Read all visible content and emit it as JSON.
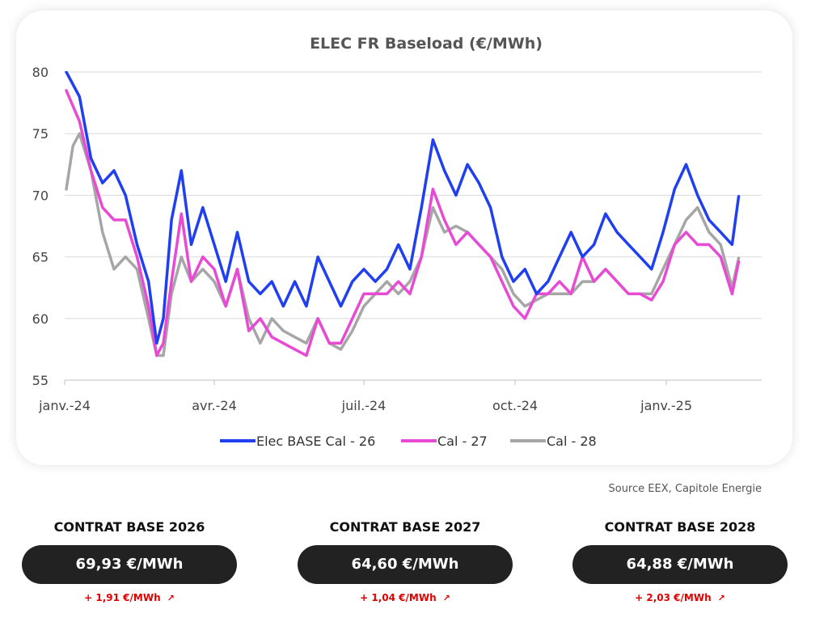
{
  "chart_data": {
    "type": "line",
    "title": "ELEC FR Baseload (€/MWh)",
    "xlabel": "",
    "ylabel": "",
    "ylim": [
      55,
      80
    ],
    "yticks": [
      55,
      60,
      65,
      70,
      75,
      80
    ],
    "xlim": [
      "2024-01-01",
      "2025-02-28"
    ],
    "xticks": [
      {
        "date": "2024-01-01",
        "label": "janv.-24"
      },
      {
        "date": "2024-04-01",
        "label": "avr.-24"
      },
      {
        "date": "2024-07-01",
        "label": "juil.-24"
      },
      {
        "date": "2024-10-01",
        "label": "oct.-24"
      },
      {
        "date": "2025-01-01",
        "label": "janv.-25"
      }
    ],
    "grid": "horizontal",
    "legend": "bottom",
    "series": [
      {
        "name": "Elec BASE Cal - 26",
        "color": "#1f3ff0",
        "points": [
          [
            "2024-01-02",
            80
          ],
          [
            "2024-01-10",
            78
          ],
          [
            "2024-01-17",
            73
          ],
          [
            "2024-01-24",
            71
          ],
          [
            "2024-01-31",
            72
          ],
          [
            "2024-02-07",
            70
          ],
          [
            "2024-02-14",
            66
          ],
          [
            "2024-02-21",
            63
          ],
          [
            "2024-02-26",
            58
          ],
          [
            "2024-03-01",
            60
          ],
          [
            "2024-03-06",
            68
          ],
          [
            "2024-03-12",
            72
          ],
          [
            "2024-03-18",
            66
          ],
          [
            "2024-03-25",
            69
          ],
          [
            "2024-04-01",
            66
          ],
          [
            "2024-04-08",
            63
          ],
          [
            "2024-04-15",
            67
          ],
          [
            "2024-04-22",
            63
          ],
          [
            "2024-04-29",
            62
          ],
          [
            "2024-05-06",
            63
          ],
          [
            "2024-05-13",
            61
          ],
          [
            "2024-05-20",
            63
          ],
          [
            "2024-05-27",
            61
          ],
          [
            "2024-06-03",
            65
          ],
          [
            "2024-06-10",
            63
          ],
          [
            "2024-06-17",
            61
          ],
          [
            "2024-06-24",
            63
          ],
          [
            "2024-07-01",
            64
          ],
          [
            "2024-07-08",
            63
          ],
          [
            "2024-07-15",
            64
          ],
          [
            "2024-07-22",
            66
          ],
          [
            "2024-07-29",
            64
          ],
          [
            "2024-08-05",
            69
          ],
          [
            "2024-08-12",
            74.5
          ],
          [
            "2024-08-19",
            72
          ],
          [
            "2024-08-26",
            70
          ],
          [
            "2024-09-02",
            72.5
          ],
          [
            "2024-09-09",
            71
          ],
          [
            "2024-09-16",
            69
          ],
          [
            "2024-09-23",
            65
          ],
          [
            "2024-09-30",
            63
          ],
          [
            "2024-10-07",
            64
          ],
          [
            "2024-10-14",
            62
          ],
          [
            "2024-10-21",
            63
          ],
          [
            "2024-10-28",
            65
          ],
          [
            "2024-11-04",
            67
          ],
          [
            "2024-11-11",
            65
          ],
          [
            "2024-11-18",
            66
          ],
          [
            "2024-11-25",
            68.5
          ],
          [
            "2024-12-02",
            67
          ],
          [
            "2024-12-09",
            66
          ],
          [
            "2024-12-16",
            65
          ],
          [
            "2024-12-23",
            64
          ],
          [
            "2024-12-30",
            67
          ],
          [
            "2025-01-06",
            70.5
          ],
          [
            "2025-01-13",
            72.5
          ],
          [
            "2025-01-20",
            70
          ],
          [
            "2025-01-27",
            68
          ],
          [
            "2025-02-03",
            67
          ],
          [
            "2025-02-10",
            66
          ],
          [
            "2025-02-14",
            69.9
          ]
        ]
      },
      {
        "name": "Cal - 27",
        "color": "#e84bd3",
        "points": [
          [
            "2024-01-02",
            78.5
          ],
          [
            "2024-01-10",
            76
          ],
          [
            "2024-01-17",
            72
          ],
          [
            "2024-01-24",
            69
          ],
          [
            "2024-01-31",
            68
          ],
          [
            "2024-02-07",
            68
          ],
          [
            "2024-02-14",
            65
          ],
          [
            "2024-02-21",
            61
          ],
          [
            "2024-02-26",
            57
          ],
          [
            "2024-03-01",
            58
          ],
          [
            "2024-03-06",
            63
          ],
          [
            "2024-03-12",
            68.5
          ],
          [
            "2024-03-18",
            63
          ],
          [
            "2024-03-25",
            65
          ],
          [
            "2024-04-01",
            64
          ],
          [
            "2024-04-08",
            61
          ],
          [
            "2024-04-15",
            64
          ],
          [
            "2024-04-22",
            59
          ],
          [
            "2024-04-29",
            60
          ],
          [
            "2024-05-06",
            58.5
          ],
          [
            "2024-05-13",
            58
          ],
          [
            "2024-05-20",
            57.5
          ],
          [
            "2024-05-27",
            57
          ],
          [
            "2024-06-03",
            60
          ],
          [
            "2024-06-10",
            58
          ],
          [
            "2024-06-17",
            58
          ],
          [
            "2024-06-24",
            60
          ],
          [
            "2024-07-01",
            62
          ],
          [
            "2024-07-08",
            62
          ],
          [
            "2024-07-15",
            62
          ],
          [
            "2024-07-22",
            63
          ],
          [
            "2024-07-29",
            62
          ],
          [
            "2024-08-05",
            65
          ],
          [
            "2024-08-12",
            70.5
          ],
          [
            "2024-08-19",
            68
          ],
          [
            "2024-08-26",
            66
          ],
          [
            "2024-09-02",
            67
          ],
          [
            "2024-09-09",
            66
          ],
          [
            "2024-09-16",
            65
          ],
          [
            "2024-09-23",
            63
          ],
          [
            "2024-09-30",
            61
          ],
          [
            "2024-10-07",
            60
          ],
          [
            "2024-10-14",
            62
          ],
          [
            "2024-10-21",
            62
          ],
          [
            "2024-10-28",
            63
          ],
          [
            "2024-11-04",
            62
          ],
          [
            "2024-11-11",
            65
          ],
          [
            "2024-11-18",
            63
          ],
          [
            "2024-11-25",
            64
          ],
          [
            "2024-12-02",
            63
          ],
          [
            "2024-12-09",
            62
          ],
          [
            "2024-12-16",
            62
          ],
          [
            "2024-12-23",
            61.5
          ],
          [
            "2024-12-30",
            63
          ],
          [
            "2025-01-06",
            66
          ],
          [
            "2025-01-13",
            67
          ],
          [
            "2025-01-20",
            66
          ],
          [
            "2025-01-27",
            66
          ],
          [
            "2025-02-03",
            65
          ],
          [
            "2025-02-10",
            62
          ],
          [
            "2025-02-14",
            64.6
          ]
        ]
      },
      {
        "name": "Cal - 28",
        "color": "#a6a6a6",
        "points": [
          [
            "2024-01-02",
            70.5
          ],
          [
            "2024-01-06",
            74
          ],
          [
            "2024-01-10",
            75
          ],
          [
            "2024-01-17",
            72
          ],
          [
            "2024-01-24",
            67
          ],
          [
            "2024-01-31",
            64
          ],
          [
            "2024-02-07",
            65
          ],
          [
            "2024-02-14",
            64
          ],
          [
            "2024-02-21",
            60
          ],
          [
            "2024-02-26",
            57
          ],
          [
            "2024-03-01",
            57
          ],
          [
            "2024-03-06",
            62
          ],
          [
            "2024-03-12",
            65
          ],
          [
            "2024-03-18",
            63
          ],
          [
            "2024-03-25",
            64
          ],
          [
            "2024-04-01",
            63
          ],
          [
            "2024-04-08",
            61
          ],
          [
            "2024-04-15",
            64
          ],
          [
            "2024-04-22",
            60
          ],
          [
            "2024-04-29",
            58
          ],
          [
            "2024-05-06",
            60
          ],
          [
            "2024-05-13",
            59
          ],
          [
            "2024-05-20",
            58.5
          ],
          [
            "2024-05-27",
            58
          ],
          [
            "2024-06-03",
            60
          ],
          [
            "2024-06-10",
            58
          ],
          [
            "2024-06-17",
            57.5
          ],
          [
            "2024-06-24",
            59
          ],
          [
            "2024-07-01",
            61
          ],
          [
            "2024-07-08",
            62
          ],
          [
            "2024-07-15",
            63
          ],
          [
            "2024-07-22",
            62
          ],
          [
            "2024-07-29",
            63
          ],
          [
            "2024-08-05",
            65
          ],
          [
            "2024-08-12",
            69
          ],
          [
            "2024-08-19",
            67
          ],
          [
            "2024-08-26",
            67.5
          ],
          [
            "2024-09-02",
            67
          ],
          [
            "2024-09-09",
            66
          ],
          [
            "2024-09-16",
            65
          ],
          [
            "2024-09-23",
            64
          ],
          [
            "2024-09-30",
            62
          ],
          [
            "2024-10-07",
            61
          ],
          [
            "2024-10-14",
            61.5
          ],
          [
            "2024-10-21",
            62
          ],
          [
            "2024-10-28",
            62
          ],
          [
            "2024-11-04",
            62
          ],
          [
            "2024-11-11",
            63
          ],
          [
            "2024-11-18",
            63
          ],
          [
            "2024-11-25",
            64
          ],
          [
            "2024-12-02",
            63
          ],
          [
            "2024-12-09",
            62
          ],
          [
            "2024-12-16",
            62
          ],
          [
            "2024-12-23",
            62
          ],
          [
            "2024-12-30",
            64
          ],
          [
            "2025-01-06",
            66
          ],
          [
            "2025-01-13",
            68
          ],
          [
            "2025-01-20",
            69
          ],
          [
            "2025-01-27",
            67
          ],
          [
            "2025-02-03",
            66
          ],
          [
            "2025-02-10",
            62.5
          ],
          [
            "2025-02-14",
            64.9
          ]
        ]
      }
    ]
  },
  "source": "Source EEX, Capitole Energie",
  "contracts": [
    {
      "title": "CONTRAT BASE 2026",
      "price": "69,93 €/MWh",
      "change": "+ 1,91 €/MWh",
      "arrow": "↗",
      "change_color": "#e00000"
    },
    {
      "title": "CONTRAT BASE 2027",
      "price": "64,60 €/MWh",
      "change": "+ 1,04 €/MWh",
      "arrow": "↗",
      "change_color": "#e00000"
    },
    {
      "title": "CONTRAT BASE 2028",
      "price": "64,88 €/MWh",
      "change": "+ 2,03 €/MWh",
      "arrow": "↗",
      "change_color": "#e00000"
    }
  ]
}
